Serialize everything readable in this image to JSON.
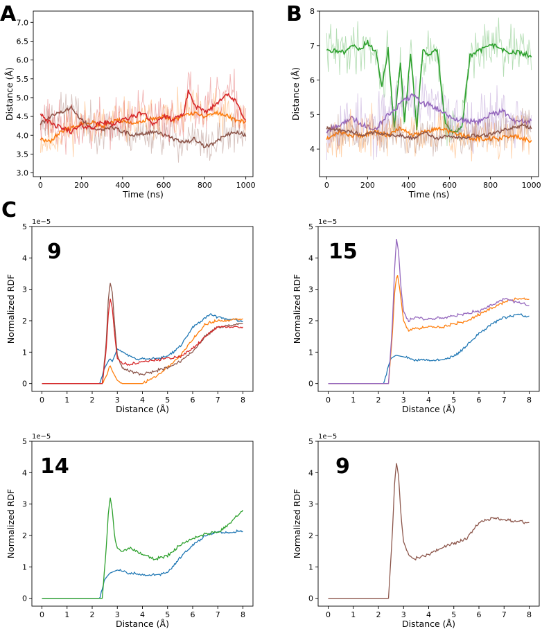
{
  "panel_labels": [
    "A",
    "B",
    "C"
  ],
  "chart_data": [
    {
      "id": "A",
      "type": "line",
      "panel": "A",
      "xlabel": "Time (ns)",
      "ylabel": "Distance (Å)",
      "xlim": [
        -35,
        1035
      ],
      "ylim": [
        2.9,
        7.3
      ],
      "xticks": [
        0,
        200,
        400,
        600,
        800,
        1000
      ],
      "yticks": [
        3.0,
        3.5,
        4.0,
        4.5,
        5.0,
        5.5,
        6.0,
        6.5,
        7.0
      ],
      "ytick_labels": [
        "3.0",
        "3.5",
        "4.0",
        "4.5",
        "5.0",
        "5.5",
        "6.0",
        "6.5",
        "7.0"
      ],
      "noisy": true,
      "series": [
        {
          "name": "orange",
          "color": "#ff7f0e",
          "amp": 0.45,
          "seed": 11,
          "x": [
            0,
            50,
            100,
            150,
            200,
            250,
            300,
            350,
            400,
            450,
            500,
            550,
            600,
            650,
            700,
            750,
            800,
            850,
            900,
            950,
            1000
          ],
          "y": [
            3.9,
            3.85,
            4.1,
            4.2,
            4.3,
            4.35,
            4.2,
            4.35,
            4.4,
            4.3,
            4.4,
            4.45,
            4.5,
            4.4,
            4.55,
            4.6,
            4.5,
            4.6,
            4.55,
            4.4,
            4.35
          ]
        },
        {
          "name": "brown",
          "color": "#8c564b",
          "amp": 0.4,
          "seed": 23,
          "x": [
            0,
            50,
            100,
            150,
            200,
            250,
            300,
            350,
            400,
            450,
            500,
            550,
            600,
            650,
            700,
            750,
            800,
            850,
            900,
            950,
            1000
          ],
          "y": [
            4.3,
            4.5,
            4.6,
            4.75,
            4.4,
            4.2,
            4.15,
            4.2,
            4.1,
            4.0,
            4.05,
            4.1,
            4.0,
            3.9,
            3.8,
            3.9,
            3.7,
            3.8,
            4.0,
            4.1,
            4.0
          ]
        },
        {
          "name": "red",
          "color": "#d62728",
          "amp": 0.5,
          "seed": 37,
          "x": [
            0,
            50,
            100,
            150,
            200,
            250,
            300,
            350,
            400,
            450,
            500,
            550,
            600,
            650,
            700,
            720,
            750,
            800,
            850,
            900,
            950,
            1000
          ],
          "y": [
            4.6,
            4.3,
            4.2,
            4.1,
            4.25,
            4.2,
            4.35,
            4.3,
            4.4,
            4.5,
            4.6,
            4.3,
            4.5,
            4.4,
            4.6,
            5.2,
            4.8,
            4.6,
            4.8,
            5.1,
            4.9,
            4.4
          ]
        }
      ]
    },
    {
      "id": "B",
      "type": "line",
      "panel": "B",
      "xlabel": "Time (ns)",
      "ylabel": "Distance (Å)",
      "xlim": [
        -35,
        1035
      ],
      "ylim": [
        3.2,
        8.0
      ],
      "xticks": [
        0,
        200,
        400,
        600,
        800,
        1000
      ],
      "yticks": [
        4,
        5,
        6,
        7,
        8
      ],
      "ytick_labels": [
        "4",
        "5",
        "6",
        "7",
        "8"
      ],
      "noisy": true,
      "series": [
        {
          "name": "green",
          "color": "#2ca02c",
          "amp": 0.55,
          "seed": 41,
          "x": [
            0,
            40,
            80,
            120,
            160,
            200,
            240,
            270,
            300,
            330,
            360,
            380,
            410,
            440,
            470,
            500,
            540,
            580,
            620,
            660,
            700,
            760,
            820,
            880,
            940,
            1000
          ],
          "y": [
            6.9,
            6.85,
            6.8,
            7.0,
            6.9,
            7.1,
            6.8,
            5.8,
            6.9,
            4.6,
            6.5,
            4.8,
            6.8,
            4.6,
            6.9,
            6.7,
            6.9,
            4.7,
            4.5,
            4.6,
            6.7,
            6.9,
            7.0,
            6.8,
            6.8,
            6.7
          ]
        },
        {
          "name": "purple",
          "color": "#9467bd",
          "amp": 0.6,
          "seed": 53,
          "x": [
            0,
            60,
            120,
            180,
            240,
            300,
            340,
            380,
            430,
            460,
            500,
            560,
            620,
            680,
            740,
            800,
            860,
            920,
            1000
          ],
          "y": [
            4.5,
            4.7,
            4.9,
            4.7,
            4.6,
            5.0,
            5.2,
            5.4,
            5.6,
            5.3,
            5.3,
            5.1,
            4.9,
            4.8,
            4.8,
            5.0,
            5.1,
            4.8,
            4.8
          ]
        },
        {
          "name": "orange",
          "color": "#ff7f0e",
          "amp": 0.5,
          "seed": 67,
          "x": [
            0,
            60,
            120,
            180,
            240,
            300,
            360,
            420,
            480,
            540,
            600,
            660,
            720,
            780,
            840,
            900,
            960,
            1000
          ],
          "y": [
            4.3,
            4.5,
            4.4,
            4.4,
            4.5,
            4.4,
            4.6,
            4.4,
            4.5,
            4.6,
            4.5,
            4.4,
            4.3,
            4.3,
            4.3,
            4.4,
            4.3,
            4.2
          ]
        },
        {
          "name": "brown",
          "color": "#8c564b",
          "amp": 0.4,
          "seed": 79,
          "x": [
            0,
            60,
            120,
            180,
            240,
            300,
            360,
            420,
            480,
            540,
            600,
            660,
            720,
            780,
            840,
            900,
            960,
            1000
          ],
          "y": [
            4.6,
            4.55,
            4.5,
            4.4,
            4.5,
            4.4,
            4.4,
            4.3,
            4.5,
            4.3,
            4.4,
            4.3,
            4.4,
            4.4,
            4.5,
            4.6,
            4.7,
            4.6
          ]
        }
      ]
    },
    {
      "id": "C1",
      "type": "line",
      "panel": "C",
      "annotation": "9",
      "xlabel": "Distance (Å)",
      "ylabel": "Normalized RDF",
      "y_scale": "1e−5",
      "xlim": [
        -0.4,
        8.4
      ],
      "ylim": [
        -0.25,
        5.0
      ],
      "xticks": [
        0,
        1,
        2,
        3,
        4,
        5,
        6,
        7,
        8
      ],
      "yticks": [
        0,
        1,
        2,
        3,
        4,
        5
      ],
      "ytick_labels": [
        "0",
        "1",
        "2",
        "3",
        "4",
        "5"
      ],
      "noisy": false,
      "series": [
        {
          "name": "blue",
          "color": "#1f77b4",
          "x": [
            0,
            2.3,
            2.5,
            2.7,
            2.8,
            3.0,
            3.2,
            3.5,
            3.8,
            4.0,
            4.5,
            5.0,
            5.5,
            6.0,
            6.5,
            6.7,
            7.0,
            8.0
          ],
          "y": [
            0,
            0,
            0.5,
            0.8,
            0.7,
            1.1,
            1.0,
            0.9,
            0.75,
            0.8,
            0.8,
            0.85,
            1.2,
            1.8,
            2.1,
            2.2,
            2.1,
            2.0
          ]
        },
        {
          "name": "orange",
          "color": "#ff7f0e",
          "x": [
            0,
            2.4,
            2.6,
            2.7,
            2.8,
            3.0,
            3.2,
            3.5,
            4.0,
            4.5,
            5.0,
            5.5,
            6.0,
            6.5,
            7.0,
            8.0
          ],
          "y": [
            0,
            0,
            0.3,
            0.6,
            0.4,
            0.1,
            0,
            0,
            0,
            0.2,
            0.5,
            0.9,
            1.4,
            1.9,
            2.0,
            2.05
          ]
        },
        {
          "name": "brown",
          "color": "#8c564b",
          "x": [
            0,
            2.4,
            2.55,
            2.65,
            2.72,
            2.8,
            2.9,
            3.0,
            3.2,
            3.5,
            4.0,
            4.5,
            5.0,
            5.5,
            6.0,
            6.5,
            7.0,
            8.0
          ],
          "y": [
            0,
            0,
            1.2,
            2.8,
            3.2,
            2.9,
            1.8,
            0.9,
            0.5,
            0.4,
            0.3,
            0.4,
            0.5,
            0.7,
            1.0,
            1.5,
            1.8,
            1.9
          ]
        },
        {
          "name": "red",
          "color": "#d62728",
          "x": [
            0,
            2.4,
            2.55,
            2.65,
            2.72,
            2.8,
            2.9,
            3.0,
            3.2,
            3.5,
            4.0,
            4.5,
            5.0,
            5.5,
            6.0,
            6.5,
            7.0,
            8.0
          ],
          "y": [
            0,
            0,
            1.0,
            2.3,
            2.7,
            2.4,
            1.5,
            0.8,
            0.65,
            0.6,
            0.7,
            0.75,
            0.8,
            0.85,
            1.1,
            1.5,
            1.8,
            1.8
          ]
        }
      ]
    },
    {
      "id": "C2",
      "type": "line",
      "panel": "C",
      "annotation": "15",
      "xlabel": "Distance (Å)",
      "ylabel": "Normalized RDF",
      "y_scale": "1e−5",
      "xlim": [
        -0.4,
        8.4
      ],
      "ylim": [
        -0.25,
        5.0
      ],
      "xticks": [
        0,
        1,
        2,
        3,
        4,
        5,
        6,
        7,
        8
      ],
      "yticks": [
        0,
        1,
        2,
        3,
        4,
        5
      ],
      "ytick_labels": [
        "0",
        "1",
        "2",
        "3",
        "4",
        "5"
      ],
      "noisy": false,
      "series": [
        {
          "name": "blue",
          "color": "#1f77b4",
          "x": [
            0,
            2.2,
            2.5,
            2.7,
            3.0,
            3.5,
            4.0,
            4.5,
            5.0,
            5.5,
            6.0,
            6.5,
            7.0,
            7.5,
            8.0
          ],
          "y": [
            0,
            0,
            0.8,
            0.9,
            0.85,
            0.75,
            0.75,
            0.75,
            0.85,
            1.2,
            1.6,
            1.9,
            2.1,
            2.2,
            2.15
          ]
        },
        {
          "name": "orange",
          "color": "#ff7f0e",
          "x": [
            0,
            2.4,
            2.55,
            2.65,
            2.75,
            2.85,
            3.0,
            3.2,
            3.5,
            4.0,
            4.5,
            5.0,
            5.5,
            6.0,
            6.5,
            7.0,
            7.5,
            8.0
          ],
          "y": [
            0,
            0,
            1.5,
            3.0,
            3.5,
            3.0,
            2.0,
            1.7,
            1.75,
            1.8,
            1.8,
            1.9,
            2.0,
            2.2,
            2.4,
            2.6,
            2.7,
            2.7
          ]
        },
        {
          "name": "purple",
          "color": "#9467bd",
          "x": [
            0,
            2.4,
            2.55,
            2.65,
            2.72,
            2.8,
            2.9,
            3.0,
            3.2,
            3.5,
            4.0,
            4.5,
            5.0,
            5.5,
            6.0,
            6.5,
            7.0,
            7.5,
            8.0
          ],
          "y": [
            0,
            0,
            1.8,
            3.8,
            4.6,
            4.2,
            3.0,
            2.3,
            2.0,
            2.1,
            2.05,
            2.1,
            2.15,
            2.25,
            2.3,
            2.5,
            2.7,
            2.6,
            2.5
          ]
        }
      ]
    },
    {
      "id": "C3",
      "type": "line",
      "panel": "C",
      "annotation": "14",
      "xlabel": "Distance (Å)",
      "ylabel": "Normalized RDF",
      "y_scale": "1e−5",
      "xlim": [
        -0.4,
        8.4
      ],
      "ylim": [
        -0.25,
        5.0
      ],
      "xticks": [
        0,
        1,
        2,
        3,
        4,
        5,
        6,
        7,
        8
      ],
      "yticks": [
        0,
        1,
        2,
        3,
        4,
        5
      ],
      "ytick_labels": [
        "0",
        "1",
        "2",
        "3",
        "4",
        "5"
      ],
      "noisy": false,
      "series": [
        {
          "name": "blue",
          "color": "#1f77b4",
          "x": [
            0,
            2.3,
            2.5,
            2.7,
            3.0,
            3.5,
            4.0,
            4.5,
            5.0,
            5.5,
            6.0,
            6.5,
            7.0,
            7.5,
            8.0
          ],
          "y": [
            0,
            0,
            0.6,
            0.8,
            0.9,
            0.8,
            0.75,
            0.75,
            0.8,
            1.3,
            1.7,
            2.0,
            2.1,
            2.1,
            2.15
          ]
        },
        {
          "name": "green",
          "color": "#2ca02c",
          "x": [
            0,
            2.4,
            2.55,
            2.65,
            2.72,
            2.8,
            2.9,
            3.0,
            3.2,
            3.5,
            4.0,
            4.5,
            5.0,
            5.5,
            6.0,
            6.5,
            7.0,
            7.5,
            8.0
          ],
          "y": [
            0,
            0,
            1.5,
            2.8,
            3.2,
            2.8,
            1.9,
            1.6,
            1.5,
            1.6,
            1.4,
            1.25,
            1.35,
            1.7,
            1.9,
            2.05,
            2.1,
            2.4,
            2.8
          ]
        }
      ]
    },
    {
      "id": "C4",
      "type": "line",
      "panel": "C",
      "annotation": "9",
      "xlabel": "Distance (Å)",
      "ylabel": "Normalized RDF",
      "y_scale": "1e−5",
      "xlim": [
        -0.4,
        8.4
      ],
      "ylim": [
        -0.25,
        5.0
      ],
      "xticks": [
        0,
        1,
        2,
        3,
        4,
        5,
        6,
        7,
        8
      ],
      "yticks": [
        0,
        1,
        2,
        3,
        4,
        5
      ],
      "ytick_labels": [
        "0",
        "1",
        "2",
        "3",
        "4",
        "5"
      ],
      "noisy": false,
      "series": [
        {
          "name": "brown",
          "color": "#8c564b",
          "x": [
            0,
            2.4,
            2.55,
            2.65,
            2.72,
            2.8,
            2.9,
            3.0,
            3.2,
            3.4,
            3.6,
            4.0,
            4.5,
            5.0,
            5.5,
            6.0,
            6.3,
            6.6,
            7.0,
            7.5,
            8.0
          ],
          "y": [
            0,
            0,
            2.0,
            3.8,
            4.3,
            3.9,
            2.6,
            1.8,
            1.4,
            1.25,
            1.3,
            1.4,
            1.6,
            1.75,
            1.9,
            2.4,
            2.5,
            2.55,
            2.5,
            2.45,
            2.4
          ]
        }
      ]
    }
  ]
}
